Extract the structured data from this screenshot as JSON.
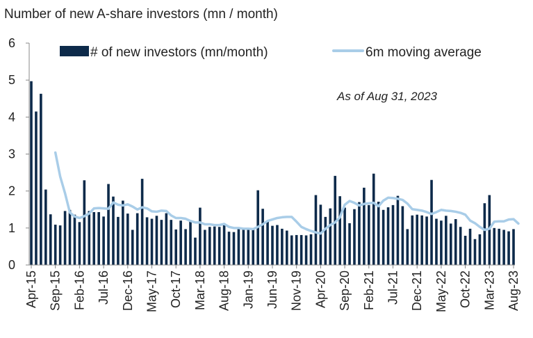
{
  "chart_data": {
    "type": "bar",
    "title": "Number of new A-share investors (mn / month)",
    "annotation": "As of Aug 31, 2023",
    "xlabel": "",
    "ylabel": "",
    "ylim": [
      0,
      6
    ],
    "yticks": [
      0,
      1,
      2,
      3,
      4,
      5,
      6
    ],
    "grid": false,
    "legend_placement": "top",
    "colors": {
      "bars": "#0d2a4a",
      "line": "#a9cde8",
      "axis": "#888888"
    },
    "x_tick_labels": [
      "Apr-15",
      "Sep-15",
      "Feb-16",
      "Jul-16",
      "Dec-16",
      "May-17",
      "Oct-17",
      "Mar-18",
      "Aug-18",
      "Jan-19",
      "Jun-19",
      "Nov-19",
      "Apr-20",
      "Sep-20",
      "Feb-21",
      "Jul-21",
      "Dec-21",
      "May-22",
      "Oct-22",
      "Mar-23",
      "Aug-23"
    ],
    "x_tick_step_months": 5,
    "series": [
      {
        "name": "# of new investors (mn/month)",
        "kind": "bar",
        "values": [
          4.97,
          4.15,
          4.63,
          2.04,
          1.37,
          1.09,
          1.07,
          1.46,
          1.49,
          1.36,
          1.16,
          2.29,
          1.46,
          1.43,
          1.43,
          1.31,
          2.19,
          1.85,
          1.3,
          1.74,
          1.39,
          0.95,
          1.4,
          2.33,
          1.29,
          1.25,
          1.33,
          1.22,
          1.4,
          1.22,
          0.96,
          1.2,
          0.97,
          1.17,
          0.74,
          1.55,
          0.95,
          1.03,
          1.04,
          1.03,
          1.1,
          0.9,
          0.89,
          0.98,
          0.96,
          1.0,
          0.97,
          2.02,
          1.52,
          1.2,
          1.06,
          1.08,
          0.98,
          0.93,
          0.8,
          0.81,
          0.81,
          0.8,
          0.83,
          1.89,
          1.63,
          1.3,
          1.53,
          2.41,
          1.86,
          1.55,
          1.13,
          1.51,
          1.7,
          2.09,
          1.62,
          2.47,
          1.71,
          1.49,
          1.56,
          1.62,
          1.87,
          1.59,
          0.97,
          1.34,
          1.36,
          1.34,
          1.31,
          2.3,
          1.25,
          1.2,
          1.33,
          1.12,
          1.24,
          1.03,
          0.79,
          0.98,
          0.7,
          0.83,
          1.67,
          1.89,
          1.0,
          0.98,
          0.95,
          0.91,
          0.97
        ]
      },
      {
        "name": "6m moving average",
        "kind": "line",
        "values": [
          null,
          null,
          null,
          null,
          null,
          3.04,
          2.39,
          1.94,
          1.42,
          1.31,
          1.27,
          1.32,
          1.39,
          1.53,
          1.54,
          1.53,
          1.52,
          1.69,
          1.63,
          1.61,
          1.64,
          1.58,
          1.5,
          1.56,
          1.53,
          1.45,
          1.44,
          1.47,
          1.46,
          1.34,
          1.27,
          1.27,
          1.25,
          1.19,
          1.15,
          1.15,
          1.1,
          1.1,
          1.08,
          1.08,
          1.11,
          1.03,
          1.0,
          1.0,
          0.98,
          0.98,
          0.97,
          1.03,
          1.1,
          1.19,
          1.23,
          1.27,
          1.29,
          1.3,
          1.3,
          1.17,
          1.03,
          0.97,
          0.92,
          0.88,
          0.85,
          0.98,
          1.08,
          1.15,
          1.29,
          1.63,
          1.73,
          1.68,
          1.61,
          1.65,
          1.67,
          1.68,
          1.59,
          1.74,
          1.82,
          1.81,
          1.79,
          1.76,
          1.66,
          1.51,
          1.49,
          1.47,
          1.43,
          1.38,
          1.43,
          1.49,
          1.47,
          1.46,
          1.44,
          1.41,
          1.36,
          1.2,
          1.13,
          1.03,
          0.95,
          0.98,
          1.17,
          1.18,
          1.18,
          1.23,
          1.24,
          1.12
        ]
      }
    ]
  }
}
